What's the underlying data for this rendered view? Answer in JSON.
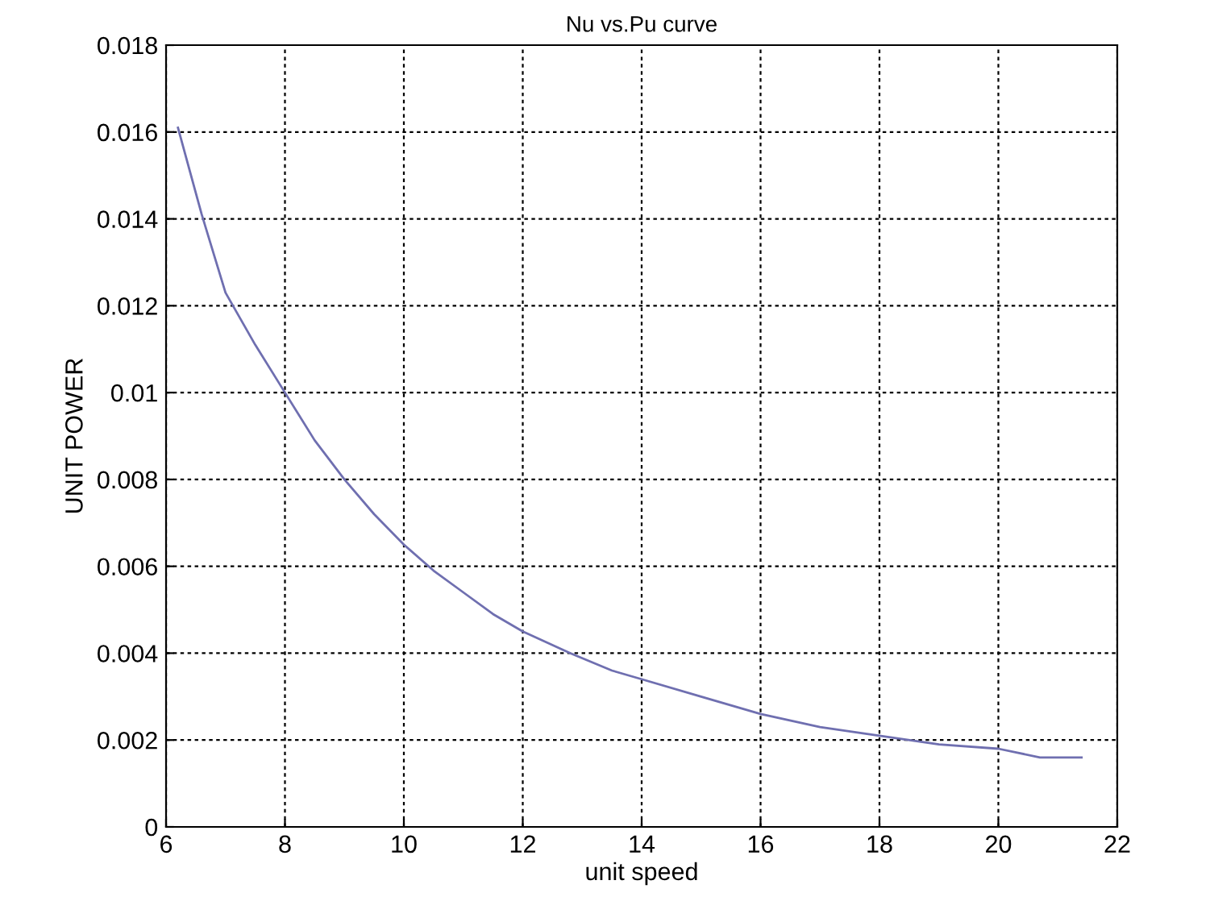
{
  "chart_data": {
    "type": "line",
    "title": "Nu vs.Pu curve",
    "xlabel": "unit speed",
    "ylabel": "UNIT POWER",
    "x": [
      6.2,
      6.6,
      7.0,
      7.5,
      8.0,
      8.5,
      9.0,
      9.5,
      10.0,
      10.5,
      11.0,
      11.5,
      12.0,
      12.8,
      13.5,
      14.0,
      15.0,
      16.0,
      17.0,
      18.0,
      19.0,
      20.0,
      20.7,
      21.4
    ],
    "series": [
      {
        "color": "#6f6fb0",
        "values": [
          0.0161,
          0.0141,
          0.0123,
          0.0111,
          0.01,
          0.0089,
          0.008,
          0.0072,
          0.0065,
          0.0059,
          0.0054,
          0.0049,
          0.0045,
          0.004,
          0.0036,
          0.0034,
          0.003,
          0.0026,
          0.0023,
          0.0021,
          0.0019,
          0.0018,
          0.0016,
          0.0016
        ]
      }
    ],
    "xlim": [
      6,
      22
    ],
    "xticks": [
      6,
      8,
      10,
      12,
      14,
      16,
      18,
      20,
      22
    ],
    "ylim": [
      0,
      0.018
    ],
    "yticks": [
      0,
      0.002,
      0.004,
      0.006,
      0.008,
      0.01,
      0.012,
      0.014,
      0.016,
      0.018
    ],
    "grid": true,
    "marker": "none",
    "line_style": "solid"
  }
}
